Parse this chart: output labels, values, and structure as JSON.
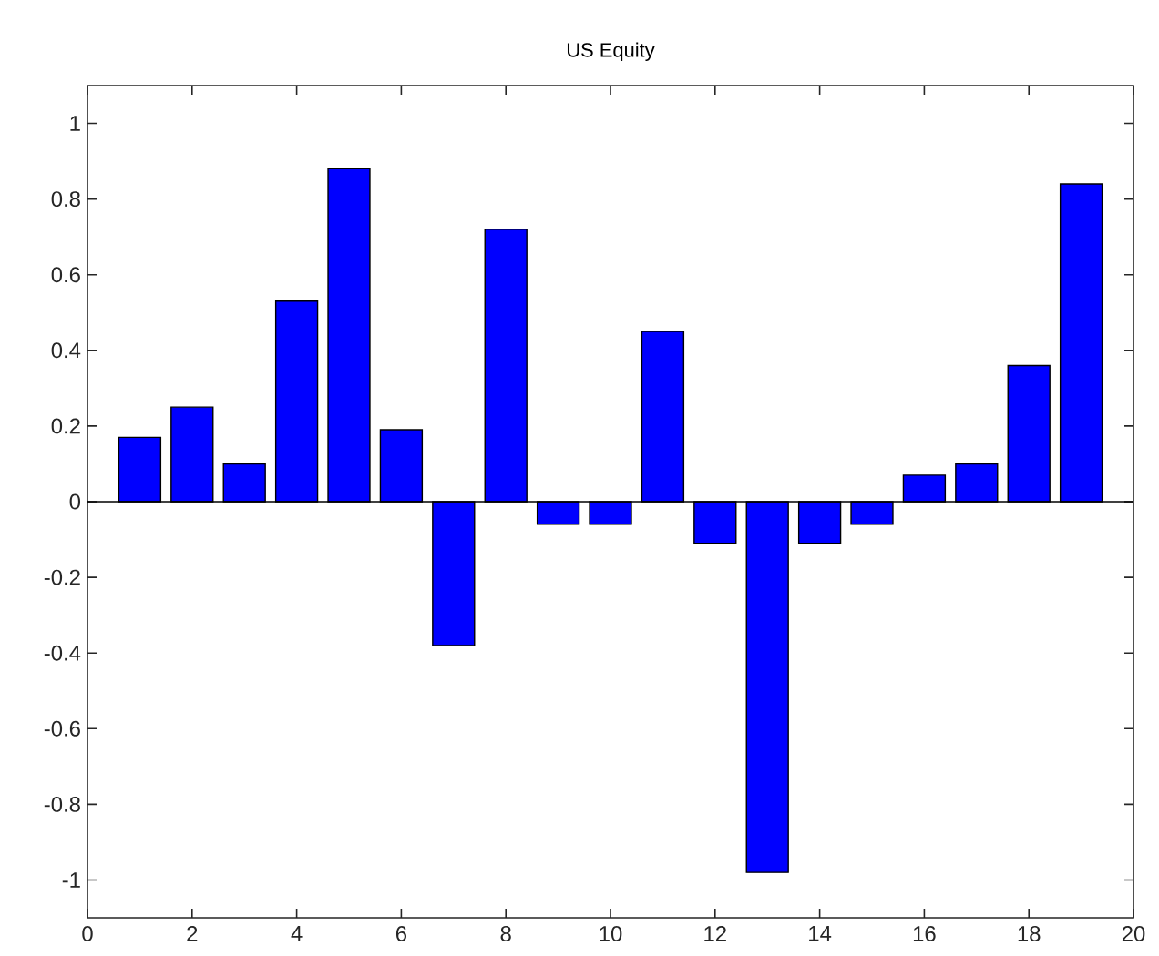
{
  "chart_data": {
    "type": "bar",
    "title": "US Equity",
    "x": [
      1,
      2,
      3,
      4,
      5,
      6,
      7,
      8,
      9,
      10,
      11,
      12,
      13,
      14,
      15,
      16,
      17,
      18,
      19
    ],
    "values": [
      0.17,
      0.25,
      0.1,
      0.53,
      0.88,
      0.19,
      -0.38,
      0.72,
      -0.06,
      -0.06,
      0.45,
      -0.11,
      -0.98,
      -0.11,
      -0.06,
      0.07,
      0.1,
      0.36,
      0.84
    ],
    "color": "#0000ff",
    "xlim": [
      0,
      20
    ],
    "xticks": [
      0,
      2,
      4,
      6,
      8,
      10,
      12,
      14,
      16,
      18,
      20
    ],
    "ylim": [
      -1.1,
      1.1
    ],
    "yticks": [
      -1,
      -0.8,
      -0.6,
      -0.4,
      -0.2,
      0,
      0.2,
      0.4,
      0.6,
      0.8,
      1
    ],
    "ref_lines": [
      {
        "axis": "y",
        "value": 0,
        "color": "#000000"
      }
    ]
  }
}
